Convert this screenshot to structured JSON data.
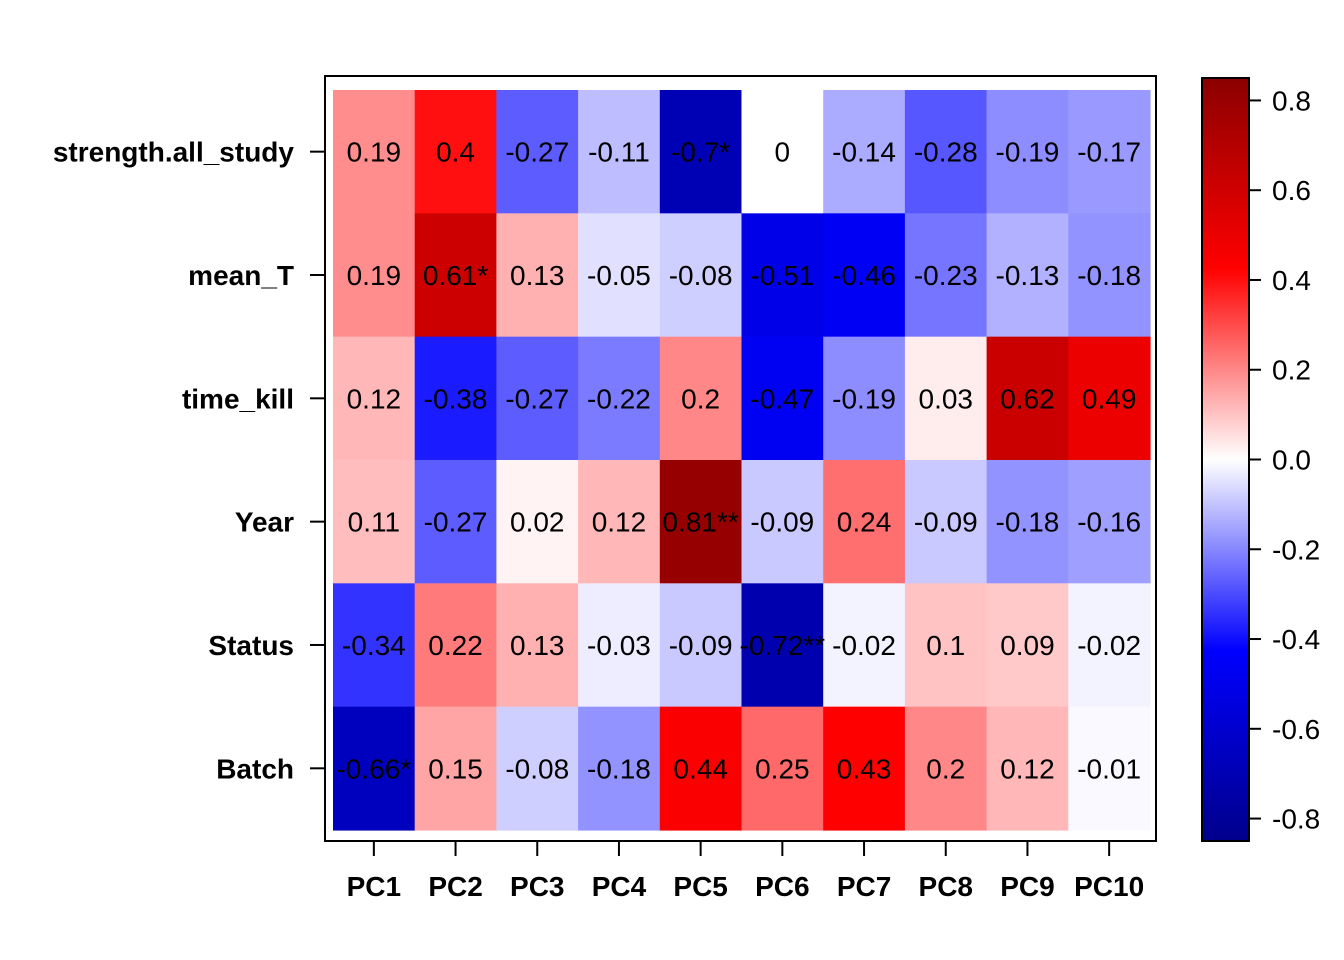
{
  "chart_data": {
    "type": "heatmap",
    "title": "",
    "xlabel": "",
    "ylabel": "",
    "rows": [
      "strength.all_study",
      "mean_T",
      "time_kill",
      "Year",
      "Status",
      "Batch"
    ],
    "columns": [
      "PC1",
      "PC2",
      "PC3",
      "PC4",
      "PC5",
      "PC6",
      "PC7",
      "PC8",
      "PC9",
      "PC10"
    ],
    "values": [
      [
        0.19,
        0.4,
        -0.27,
        -0.11,
        -0.7,
        0,
        -0.14,
        -0.28,
        -0.19,
        -0.17
      ],
      [
        0.19,
        0.61,
        0.13,
        -0.05,
        -0.08,
        -0.51,
        -0.46,
        -0.23,
        -0.13,
        -0.18
      ],
      [
        0.12,
        -0.38,
        -0.27,
        -0.22,
        0.2,
        -0.47,
        -0.19,
        0.03,
        0.62,
        0.49
      ],
      [
        0.11,
        -0.27,
        0.02,
        0.12,
        0.81,
        -0.09,
        0.24,
        -0.09,
        -0.18,
        -0.16
      ],
      [
        -0.34,
        0.22,
        0.13,
        -0.03,
        -0.09,
        -0.72,
        -0.02,
        0.1,
        0.09,
        -0.02
      ],
      [
        -0.66,
        0.15,
        -0.08,
        -0.18,
        0.44,
        0.25,
        0.43,
        0.2,
        0.12,
        -0.01
      ]
    ],
    "labels": [
      [
        "0.19",
        "0.4",
        "-0.27",
        "-0.11",
        "-0.7*",
        "0",
        "-0.14",
        "-0.28",
        "-0.19",
        "-0.17"
      ],
      [
        "0.19",
        "0.61*",
        "0.13",
        "-0.05",
        "-0.08",
        "-0.51",
        "-0.46",
        "-0.23",
        "-0.13",
        "-0.18"
      ],
      [
        "0.12",
        "-0.38",
        "-0.27",
        "-0.22",
        "0.2",
        "-0.47",
        "-0.19",
        "0.03",
        "0.62",
        "0.49"
      ],
      [
        "0.11",
        "-0.27",
        "0.02",
        "0.12",
        "0.81**",
        "-0.09",
        "0.24",
        "-0.09",
        "-0.18",
        "-0.16"
      ],
      [
        "-0.34",
        "0.22",
        "0.13",
        "-0.03",
        "-0.09",
        "-0.72**",
        "-0.02",
        "0.1",
        "0.09",
        "-0.02"
      ],
      [
        "-0.66*",
        "0.15",
        "-0.08",
        "-0.18",
        "0.44",
        "0.25",
        "0.43",
        "0.2",
        "0.12",
        "-0.01"
      ]
    ],
    "color_scale": {
      "min": -0.85,
      "max": 0.85,
      "colors": [
        "#00008B",
        "#0000FF",
        "#FFFFFF",
        "#FF0000",
        "#8B0000"
      ]
    },
    "colorbar_ticks": [
      "-0.8",
      "-0.6",
      "-0.4",
      "-0.2",
      "0.0",
      "0.2",
      "0.4",
      "0.6",
      "0.8"
    ],
    "colorbar_tick_values": [
      -0.8,
      -0.6,
      -0.4,
      -0.2,
      0.0,
      0.2,
      0.4,
      0.6,
      0.8
    ],
    "legend_position": "right",
    "grid": false
  }
}
